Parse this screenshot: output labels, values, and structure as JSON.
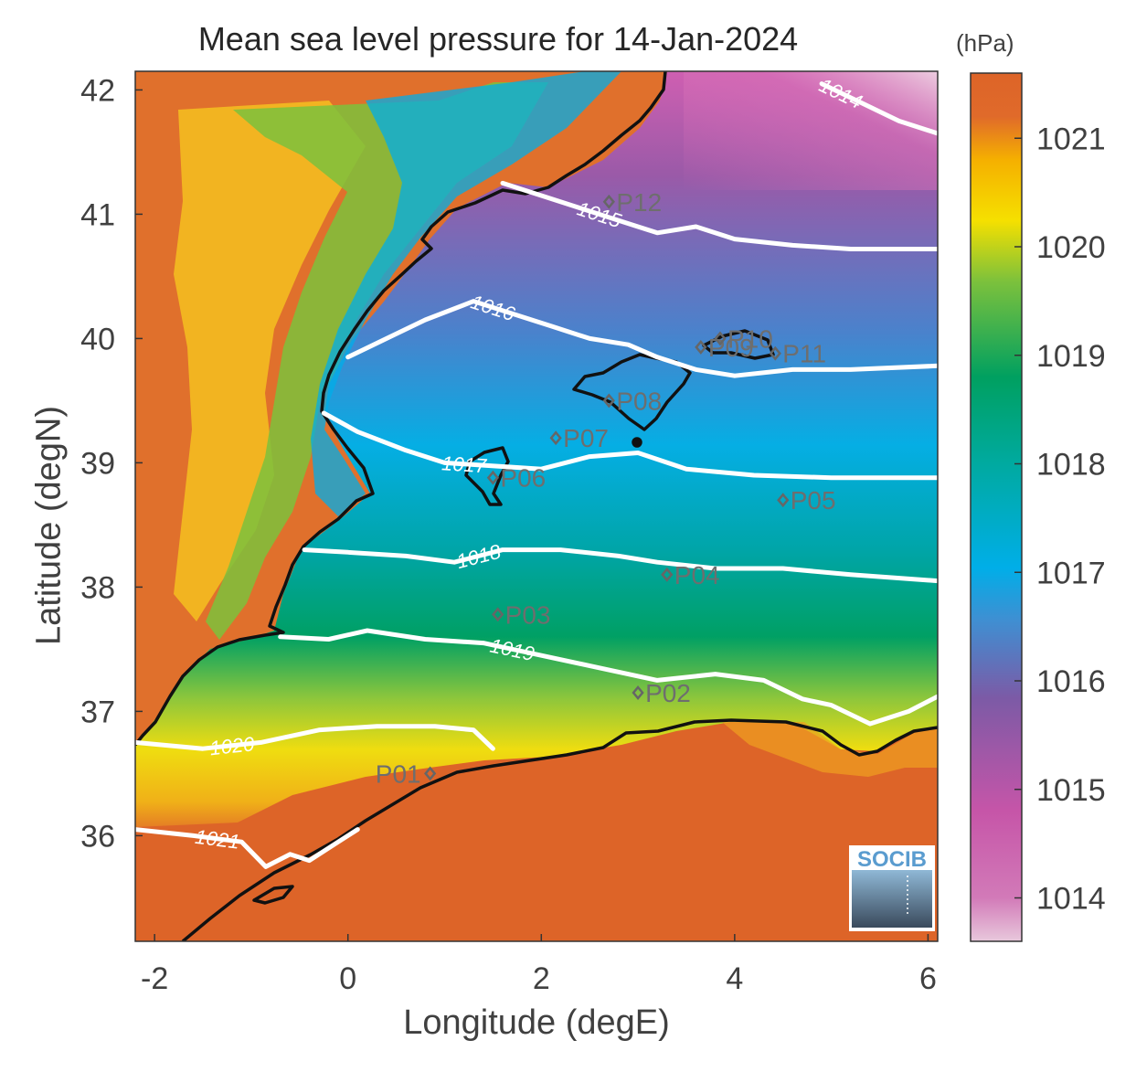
{
  "title": "Mean sea level pressure for 14-Jan-2024",
  "xlabel": "Longitude (degE)",
  "ylabel": "Latitude (degN)",
  "colorbar": {
    "unit": "(hPa)",
    "ticks": [
      "1014",
      "1015",
      "1016",
      "1017",
      "1018",
      "1019",
      "1020",
      "1021"
    ],
    "range": [
      1013.6,
      1021.6
    ],
    "colors": [
      "#e8c8dc",
      "#cc5aac",
      "#7e5aa6",
      "#3f8fd2",
      "#00aee8",
      "#00aaa0",
      "#00a060",
      "#7cc13c",
      "#f5e000",
      "#f5b000",
      "#e06a2a",
      "#dd6428"
    ]
  },
  "axes": {
    "x_ticks": [
      "-2",
      "0",
      "2",
      "4",
      "6"
    ],
    "y_ticks": [
      "36",
      "37",
      "38",
      "39",
      "40",
      "41",
      "42"
    ],
    "xlim": [
      -2.2,
      6.1
    ],
    "ylim": [
      35.15,
      42.15
    ]
  },
  "contours": [
    {
      "value": "1014",
      "points": [
        [
          4.9,
          42.05
        ],
        [
          5.3,
          41.9
        ],
        [
          5.7,
          41.75
        ],
        [
          6.1,
          41.65
        ]
      ]
    },
    {
      "value": "1015",
      "points": [
        [
          1.6,
          41.25
        ],
        [
          2.0,
          41.15
        ],
        [
          2.4,
          41.05
        ],
        [
          2.8,
          40.95
        ],
        [
          3.2,
          40.85
        ],
        [
          3.6,
          40.9
        ],
        [
          4.0,
          40.8
        ],
        [
          4.6,
          40.75
        ],
        [
          5.2,
          40.72
        ],
        [
          6.1,
          40.72
        ]
      ]
    },
    {
      "value": "1016",
      "points": [
        [
          0.0,
          39.85
        ],
        [
          0.4,
          40.0
        ],
        [
          0.8,
          40.15
        ],
        [
          1.3,
          40.3
        ],
        [
          1.7,
          40.2
        ],
        [
          2.1,
          40.1
        ],
        [
          2.5,
          40.0
        ],
        [
          2.9,
          39.95
        ],
        [
          3.2,
          39.85
        ],
        [
          3.6,
          39.75
        ],
        [
          4.0,
          39.7
        ],
        [
          4.6,
          39.75
        ],
        [
          5.2,
          39.75
        ],
        [
          6.1,
          39.78
        ]
      ]
    },
    {
      "value": "1017",
      "points": [
        [
          -0.25,
          39.4
        ],
        [
          0.1,
          39.25
        ],
        [
          0.6,
          39.1
        ],
        [
          1.0,
          39.0
        ],
        [
          1.4,
          38.98
        ],
        [
          2.0,
          38.95
        ],
        [
          2.5,
          39.05
        ],
        [
          3.0,
          39.08
        ],
        [
          3.5,
          38.95
        ],
        [
          4.2,
          38.9
        ],
        [
          5.0,
          38.88
        ],
        [
          6.1,
          38.88
        ]
      ]
    },
    {
      "value": "1018",
      "points": [
        [
          -0.45,
          38.3
        ],
        [
          0.0,
          38.28
        ],
        [
          0.6,
          38.25
        ],
        [
          1.1,
          38.2
        ],
        [
          1.6,
          38.3
        ],
        [
          2.2,
          38.3
        ],
        [
          2.8,
          38.25
        ],
        [
          3.2,
          38.2
        ],
        [
          3.8,
          38.15
        ],
        [
          4.5,
          38.15
        ],
        [
          5.2,
          38.1
        ],
        [
          6.1,
          38.05
        ]
      ]
    },
    {
      "value": "1019",
      "points": [
        [
          -0.7,
          37.6
        ],
        [
          -0.2,
          37.58
        ],
        [
          0.2,
          37.65
        ],
        [
          0.8,
          37.58
        ],
        [
          1.4,
          37.55
        ],
        [
          2.0,
          37.45
        ],
        [
          2.6,
          37.35
        ],
        [
          3.2,
          37.25
        ],
        [
          3.8,
          37.3
        ],
        [
          4.3,
          37.25
        ],
        [
          4.7,
          37.1
        ],
        [
          5.0,
          37.05
        ],
        [
          5.4,
          36.9
        ],
        [
          5.8,
          37.0
        ],
        [
          6.1,
          37.12
        ]
      ]
    },
    {
      "value": "1020",
      "points": [
        [
          -2.2,
          36.75
        ],
        [
          -1.5,
          36.7
        ],
        [
          -0.9,
          36.75
        ],
        [
          -0.3,
          36.85
        ],
        [
          0.3,
          36.88
        ],
        [
          0.9,
          36.88
        ],
        [
          1.3,
          36.85
        ],
        [
          1.5,
          36.7
        ]
      ]
    },
    {
      "value": "1021",
      "points": [
        [
          -2.2,
          36.05
        ],
        [
          -1.6,
          36.0
        ],
        [
          -1.1,
          35.95
        ],
        [
          -0.85,
          35.75
        ],
        [
          -0.6,
          35.85
        ],
        [
          -0.4,
          35.8
        ],
        [
          -0.1,
          35.95
        ],
        [
          0.1,
          36.05
        ]
      ]
    }
  ],
  "stations": [
    {
      "id": "P01",
      "lon": 0.85,
      "lat": 36.5
    },
    {
      "id": "P02",
      "lon": 3.0,
      "lat": 37.15
    },
    {
      "id": "P03",
      "lon": 1.55,
      "lat": 37.78
    },
    {
      "id": "P04",
      "lon": 3.3,
      "lat": 38.1
    },
    {
      "id": "P05",
      "lon": 4.5,
      "lat": 38.7
    },
    {
      "id": "P06",
      "lon": 1.5,
      "lat": 38.88
    },
    {
      "id": "P07",
      "lon": 2.15,
      "lat": 39.2
    },
    {
      "id": "P08",
      "lon": 2.7,
      "lat": 39.5
    },
    {
      "id": "P09",
      "lon": 3.65,
      "lat": 39.93
    },
    {
      "id": "P10",
      "lon": 3.85,
      "lat": 40.0
    },
    {
      "id": "P11",
      "lon": 4.42,
      "lat": 39.88
    },
    {
      "id": "P12",
      "lon": 2.7,
      "lat": 41.1
    }
  ],
  "logo": "SOCIB"
}
